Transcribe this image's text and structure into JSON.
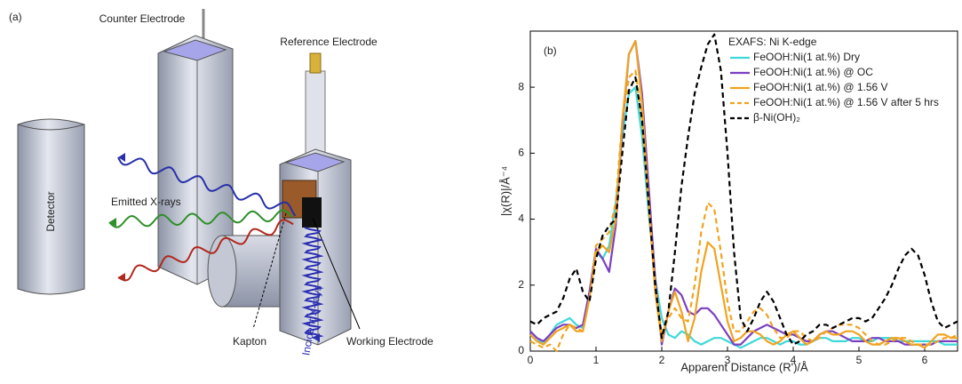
{
  "diagram": {
    "panel_label": "(a)",
    "labels": {
      "counter_electrode": "Counter Electrode",
      "reference_electrode": "Reference Electrode",
      "detector": "Detector",
      "emitted": "Emitted X-rays",
      "kapton": "Kapton",
      "incident": "Incident X-rays",
      "working_electrode": "Working Electrode"
    }
  },
  "chart_data": {
    "type": "line",
    "panel_label": "(b)",
    "legend_title": "EXAFS: Ni K-edge",
    "legend": "upper right",
    "x_label": "Apparent Distance (R')/Å",
    "y_label": "|χ(R)|/Å⁻⁴",
    "xlim": [
      0,
      6.5
    ],
    "ylim": [
      0,
      9.7
    ],
    "xticks": [
      0,
      1,
      2,
      3,
      4,
      5,
      6
    ],
    "yticks": [
      0,
      2,
      4,
      6,
      8
    ],
    "x": [
      0,
      0.1,
      0.2,
      0.3,
      0.4,
      0.5,
      0.6,
      0.7,
      0.8,
      0.9,
      1.0,
      1.1,
      1.2,
      1.3,
      1.4,
      1.5,
      1.6,
      1.7,
      1.8,
      1.9,
      2.0,
      2.1,
      2.2,
      2.3,
      2.4,
      2.5,
      2.6,
      2.7,
      2.8,
      2.9,
      3.0,
      3.1,
      3.2,
      3.3,
      3.4,
      3.5,
      3.6,
      3.7,
      3.8,
      3.9,
      4.0,
      4.1,
      4.2,
      4.3,
      4.4,
      4.5,
      4.6,
      4.7,
      4.8,
      4.9,
      5.0,
      5.1,
      5.2,
      5.3,
      5.4,
      5.5,
      5.6,
      5.7,
      5.8,
      5.9,
      6.0,
      6.1,
      6.2,
      6.3,
      6.4,
      6.5
    ],
    "series": [
      {
        "name": "FeOOH:Ni(1 at.%) Dry",
        "color": "#3ed8d8",
        "style": "solid",
        "values": [
          0.6,
          0.4,
          0.2,
          0.5,
          0.8,
          0.9,
          1.0,
          0.8,
          0.7,
          1.8,
          3.0,
          2.8,
          3.2,
          4.5,
          6.5,
          7.8,
          8.0,
          6.5,
          4.2,
          2.2,
          1.0,
          0.5,
          0.4,
          0.6,
          0.5,
          0.3,
          0.2,
          0.3,
          0.4,
          0.4,
          0.3,
          0.2,
          0.1,
          0.2,
          0.3,
          0.4,
          0.4,
          0.3,
          0.2,
          0.3,
          0.3,
          0.2,
          0.2,
          0.3,
          0.4,
          0.4,
          0.3,
          0.3,
          0.3,
          0.4,
          0.4,
          0.3,
          0.3,
          0.4,
          0.4,
          0.4,
          0.3,
          0.3,
          0.3,
          0.3,
          0.3,
          0.3,
          0.3,
          0.2,
          0.2,
          0.2
        ]
      },
      {
        "name": "FeOOH:Ni(1 at.%) @ OC",
        "color": "#7b3fc2",
        "style": "solid",
        "values": [
          0.6,
          0.4,
          0.3,
          0.5,
          0.7,
          0.8,
          0.8,
          0.7,
          0.8,
          1.8,
          3.1,
          2.8,
          2.4,
          3.8,
          6.8,
          9.0,
          9.4,
          7.8,
          5.0,
          2.2,
          0.2,
          1.2,
          1.9,
          1.7,
          1.2,
          1.1,
          1.3,
          1.3,
          1.1,
          0.8,
          0.5,
          0.2,
          0.2,
          0.4,
          0.6,
          0.7,
          0.8,
          0.7,
          0.6,
          0.5,
          0.5,
          0.4,
          0.3,
          0.3,
          0.5,
          0.6,
          0.6,
          0.5,
          0.4,
          0.3,
          0.3,
          0.3,
          0.4,
          0.4,
          0.3,
          0.3,
          0.3,
          0.2,
          0.2,
          0.2,
          0.2,
          0.2,
          0.3,
          0.3,
          0.3,
          0.3
        ]
      },
      {
        "name": "FeOOH:Ni(1 at.%) @ 1.56 V",
        "color": "#f0a321",
        "style": "solid",
        "values": [
          0.5,
          0.3,
          0.2,
          0.4,
          0.6,
          0.7,
          0.8,
          0.6,
          0.6,
          1.6,
          3.0,
          3.2,
          3.0,
          4.0,
          7.0,
          9.0,
          9.4,
          7.5,
          4.5,
          1.8,
          0.3,
          1.2,
          1.8,
          1.2,
          0.3,
          1.0,
          2.4,
          3.3,
          3.1,
          2.0,
          0.9,
          0.3,
          0.4,
          0.6,
          0.6,
          0.5,
          0.3,
          0.2,
          0.3,
          0.5,
          0.6,
          0.4,
          0.2,
          0.3,
          0.5,
          0.6,
          0.5,
          0.5,
          0.6,
          0.6,
          0.5,
          0.3,
          0.2,
          0.2,
          0.3,
          0.4,
          0.4,
          0.3,
          0.2,
          0.2,
          0.1,
          0.3,
          0.5,
          0.5,
          0.4,
          0.4
        ]
      },
      {
        "name": "FeOOH:Ni(1 at.%) @ 1.56 V after 5 hrs",
        "color": "#f0a321",
        "style": "dashed",
        "values": [
          0.3,
          0.2,
          0.1,
          0.2,
          0.0,
          0.5,
          0.8,
          0.7,
          0.6,
          1.6,
          3.2,
          3.4,
          3.6,
          4.5,
          7.0,
          8.3,
          8.5,
          7.0,
          4.5,
          2.0,
          0.5,
          1.0,
          1.3,
          1.0,
          0.9,
          2.0,
          3.6,
          4.5,
          4.3,
          3.0,
          1.5,
          0.6,
          0.6,
          0.9,
          1.2,
          1.3,
          1.1,
          0.7,
          0.4,
          0.4,
          0.6,
          0.6,
          0.4,
          0.3,
          0.4,
          0.6,
          0.7,
          0.8,
          0.8,
          0.8,
          0.7,
          0.5,
          0.3,
          0.2,
          0.2,
          0.3,
          0.4,
          0.4,
          0.3,
          0.2,
          0.2,
          0.2,
          0.3,
          0.4,
          0.4,
          0.5
        ]
      },
      {
        "name": "β-Ni(OH)₂",
        "color": "#000000",
        "style": "dashed",
        "values": [
          0.9,
          0.8,
          1.0,
          1.1,
          1.2,
          1.6,
          2.2,
          2.5,
          1.8,
          1.5,
          2.8,
          3.5,
          3.8,
          4.0,
          6.0,
          7.9,
          8.3,
          7.0,
          4.5,
          2.0,
          0.4,
          1.2,
          3.0,
          5.0,
          6.5,
          7.8,
          8.6,
          9.3,
          9.6,
          8.5,
          6.0,
          3.0,
          1.0,
          0.6,
          1.0,
          1.5,
          1.8,
          1.5,
          1.0,
          0.5,
          0.2,
          0.3,
          0.5,
          0.6,
          0.8,
          0.8,
          0.7,
          0.8,
          0.9,
          1.0,
          1.0,
          0.9,
          1.0,
          1.3,
          1.6,
          2.0,
          2.5,
          2.9,
          3.1,
          2.9,
          2.3,
          1.5,
          0.9,
          0.7,
          0.8,
          0.9
        ]
      }
    ]
  }
}
